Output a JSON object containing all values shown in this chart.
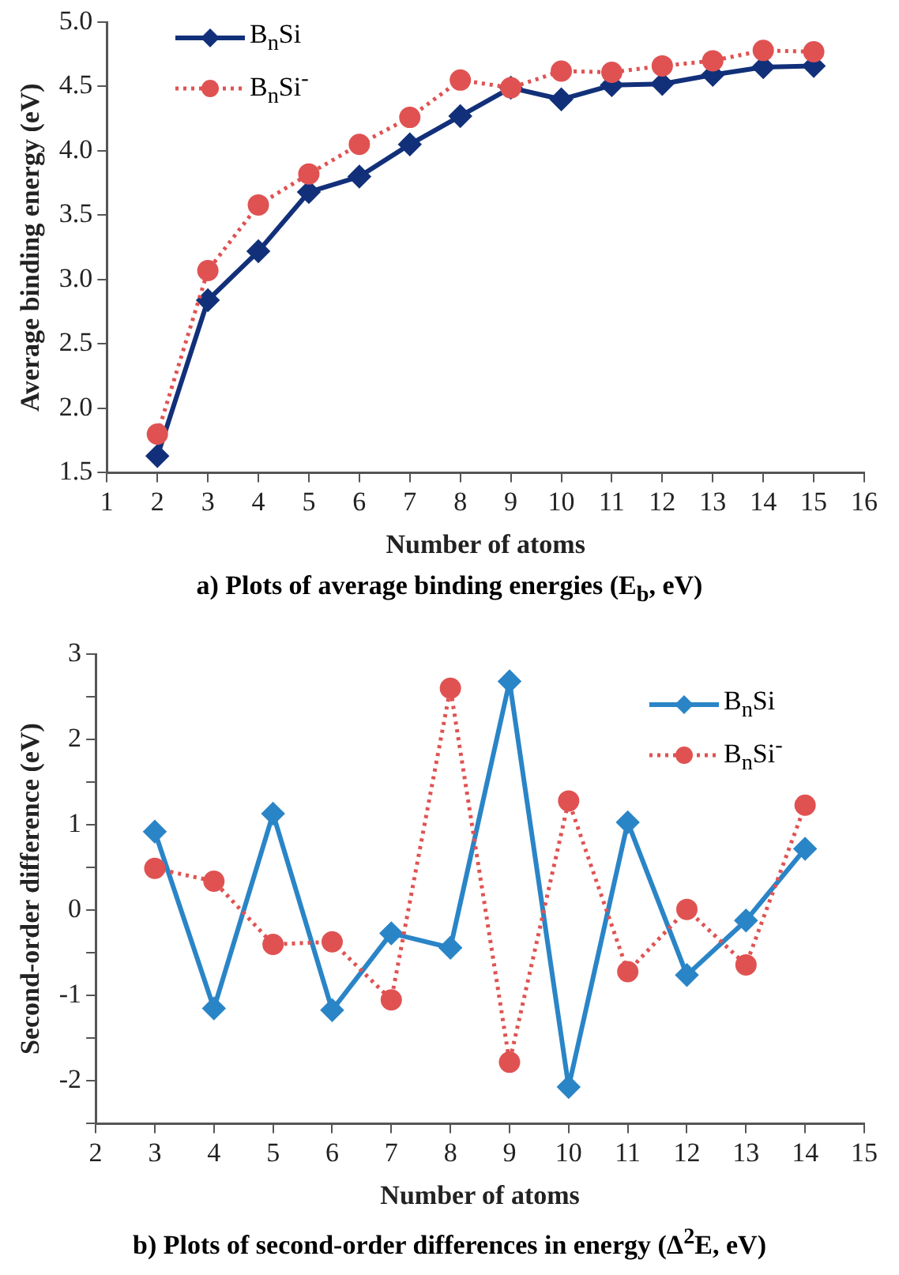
{
  "chart_data": [
    {
      "type": "line",
      "title": "a) Plots of average binding energies (E$_{b}$, eV)",
      "xlabel": "Number of atoms",
      "ylabel": "Average binding energy (eV)",
      "x": [
        2,
        3,
        4,
        5,
        6,
        7,
        8,
        9,
        10,
        11,
        12,
        13,
        14,
        15
      ],
      "series": [
        {
          "name": "B$_{n}$Si",
          "color": "#12307a",
          "marker": "diamond",
          "line_style": "solid",
          "values": [
            1.63,
            2.84,
            3.22,
            3.68,
            3.8,
            4.05,
            4.27,
            4.49,
            4.4,
            4.51,
            4.52,
            4.59,
            4.65,
            4.66
          ]
        },
        {
          "name": "B$_{n}$Si$^{-}$",
          "color": "#e05252",
          "marker": "circle",
          "line_style": "dotted",
          "values": [
            1.8,
            3.07,
            3.58,
            3.82,
            4.05,
            4.26,
            4.55,
            4.49,
            4.62,
            4.61,
            4.66,
            4.7,
            4.78,
            4.77
          ]
        }
      ],
      "xlim": [
        1,
        16
      ],
      "xticks": [
        1,
        2,
        3,
        4,
        5,
        6,
        7,
        8,
        9,
        10,
        11,
        12,
        13,
        14,
        15,
        16
      ],
      "ylim": [
        1.5,
        5.0
      ],
      "yticks": [
        {
          "value": 1.5,
          "label": "1.5"
        },
        {
          "value": 2,
          "label": "2.0"
        },
        {
          "value": 2.5,
          "label": "2.5"
        },
        {
          "value": 3,
          "label": "3.0"
        },
        {
          "value": 3.5,
          "label": "3.5"
        },
        {
          "value": 4,
          "label": "4.0"
        },
        {
          "value": 4.5,
          "label": "4.5"
        },
        {
          "value": 5,
          "label": "5.0"
        }
      ],
      "grid": false,
      "legend": "top left"
    },
    {
      "type": "line",
      "title": "b) Plots of second-order differences in energy (Δ$^{2}$E, eV)",
      "xlabel": "Number of atoms",
      "ylabel": "Second-order difference (eV)",
      "x": [
        3,
        4,
        5,
        6,
        7,
        8,
        9,
        10,
        11,
        12,
        13,
        14
      ],
      "series": [
        {
          "name": "B$_{n}$Si",
          "color": "#2a85c7",
          "marker": "diamond",
          "line_style": "solid",
          "values": [
            0.92,
            -1.15,
            1.13,
            -1.17,
            -0.27,
            -0.44,
            2.68,
            -2.07,
            1.03,
            -0.76,
            -0.12,
            0.72
          ]
        },
        {
          "name": "B$_{n}$Si$^{-}$",
          "color": "#e05252",
          "marker": "circle",
          "line_style": "dotted",
          "values": [
            0.49,
            0.34,
            -0.4,
            -0.37,
            -1.05,
            2.6,
            -1.78,
            1.28,
            -0.72,
            0.01,
            -0.64,
            1.23
          ]
        }
      ],
      "xlim": [
        2,
        15
      ],
      "xticks": [
        2,
        3,
        4,
        5,
        6,
        7,
        8,
        9,
        10,
        11,
        12,
        13,
        14,
        15
      ],
      "ylim": [
        -2.5,
        3
      ],
      "yticks": [
        {
          "value": -2.5,
          "label": null
        },
        -2,
        {
          "value": -1.5,
          "label": null
        },
        -1,
        {
          "value": -0.5,
          "label": null
        },
        0,
        {
          "value": 0.5,
          "label": null
        },
        1,
        {
          "value": 1.5,
          "label": null
        },
        2,
        {
          "value": 2.5,
          "label": null
        },
        3
      ],
      "grid": false,
      "legend": "top right"
    }
  ]
}
